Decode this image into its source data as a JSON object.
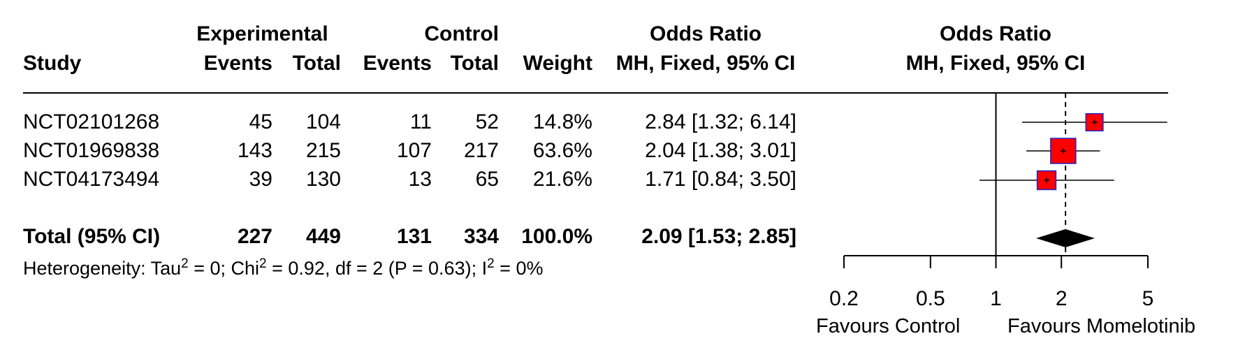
{
  "header": {
    "study": "Study",
    "experimental": "Experimental",
    "control": "Control",
    "events": "Events",
    "total": "Total",
    "weight": "Weight",
    "odds_ratio": "Odds Ratio",
    "method": "MH, Fixed, 95% CI"
  },
  "studies": [
    {
      "name": "NCT02101268",
      "exp_events": "45",
      "exp_total": "104",
      "ctl_events": "11",
      "ctl_total": "52",
      "weight": "14.8%",
      "ci_text": "2.84 [1.32; 6.14]"
    },
    {
      "name": "NCT01969838",
      "exp_events": "143",
      "exp_total": "215",
      "ctl_events": "107",
      "ctl_total": "217",
      "weight": "63.6%",
      "ci_text": "2.04 [1.38; 3.01]"
    },
    {
      "name": "NCT04173494",
      "exp_events": "39",
      "exp_total": "130",
      "ctl_events": "13",
      "ctl_total": "65",
      "weight": "21.6%",
      "ci_text": "1.71 [0.84; 3.50]"
    }
  ],
  "total": {
    "name": "Total (95% CI)",
    "exp_events": "227",
    "exp_total": "449",
    "ctl_events": "131",
    "ctl_total": "334",
    "weight": "100.0%",
    "ci_text": "2.09 [1.53; 2.85]"
  },
  "heterogeneity": {
    "prefix": "Heterogeneity: Tau",
    "sup1": "2",
    "mid1": " = 0; Chi",
    "sup2": "2",
    "mid2": " = 0.92, df = 2 (P = 0.63); I",
    "sup3": "2",
    "suffix": " = 0%"
  },
  "labels": {
    "favours_left": "Favours Control",
    "favours_right": "Favours Momelotinib"
  },
  "colors": {
    "box_fill": "#ff0000",
    "box_border": "#2222cc",
    "line": "#000000",
    "diamond": "#000000"
  },
  "chart_data": {
    "type": "forest",
    "scale": "log",
    "xlim": [
      0.2,
      5
    ],
    "ticks": [
      0.2,
      0.5,
      1,
      2,
      5
    ],
    "tick_labels": [
      "0.2",
      "0.5",
      "1",
      "2",
      "5"
    ],
    "null_value": 1,
    "studies": [
      {
        "name": "NCT02101268",
        "or": 2.84,
        "lower": 1.32,
        "upper": 6.14,
        "weight": 14.8
      },
      {
        "name": "NCT01969838",
        "or": 2.04,
        "lower": 1.38,
        "upper": 3.01,
        "weight": 63.6
      },
      {
        "name": "NCT04173494",
        "or": 1.71,
        "lower": 0.84,
        "upper": 3.5,
        "weight": 21.6
      }
    ],
    "pooled": {
      "or": 2.09,
      "lower": 1.53,
      "upper": 2.85
    }
  }
}
